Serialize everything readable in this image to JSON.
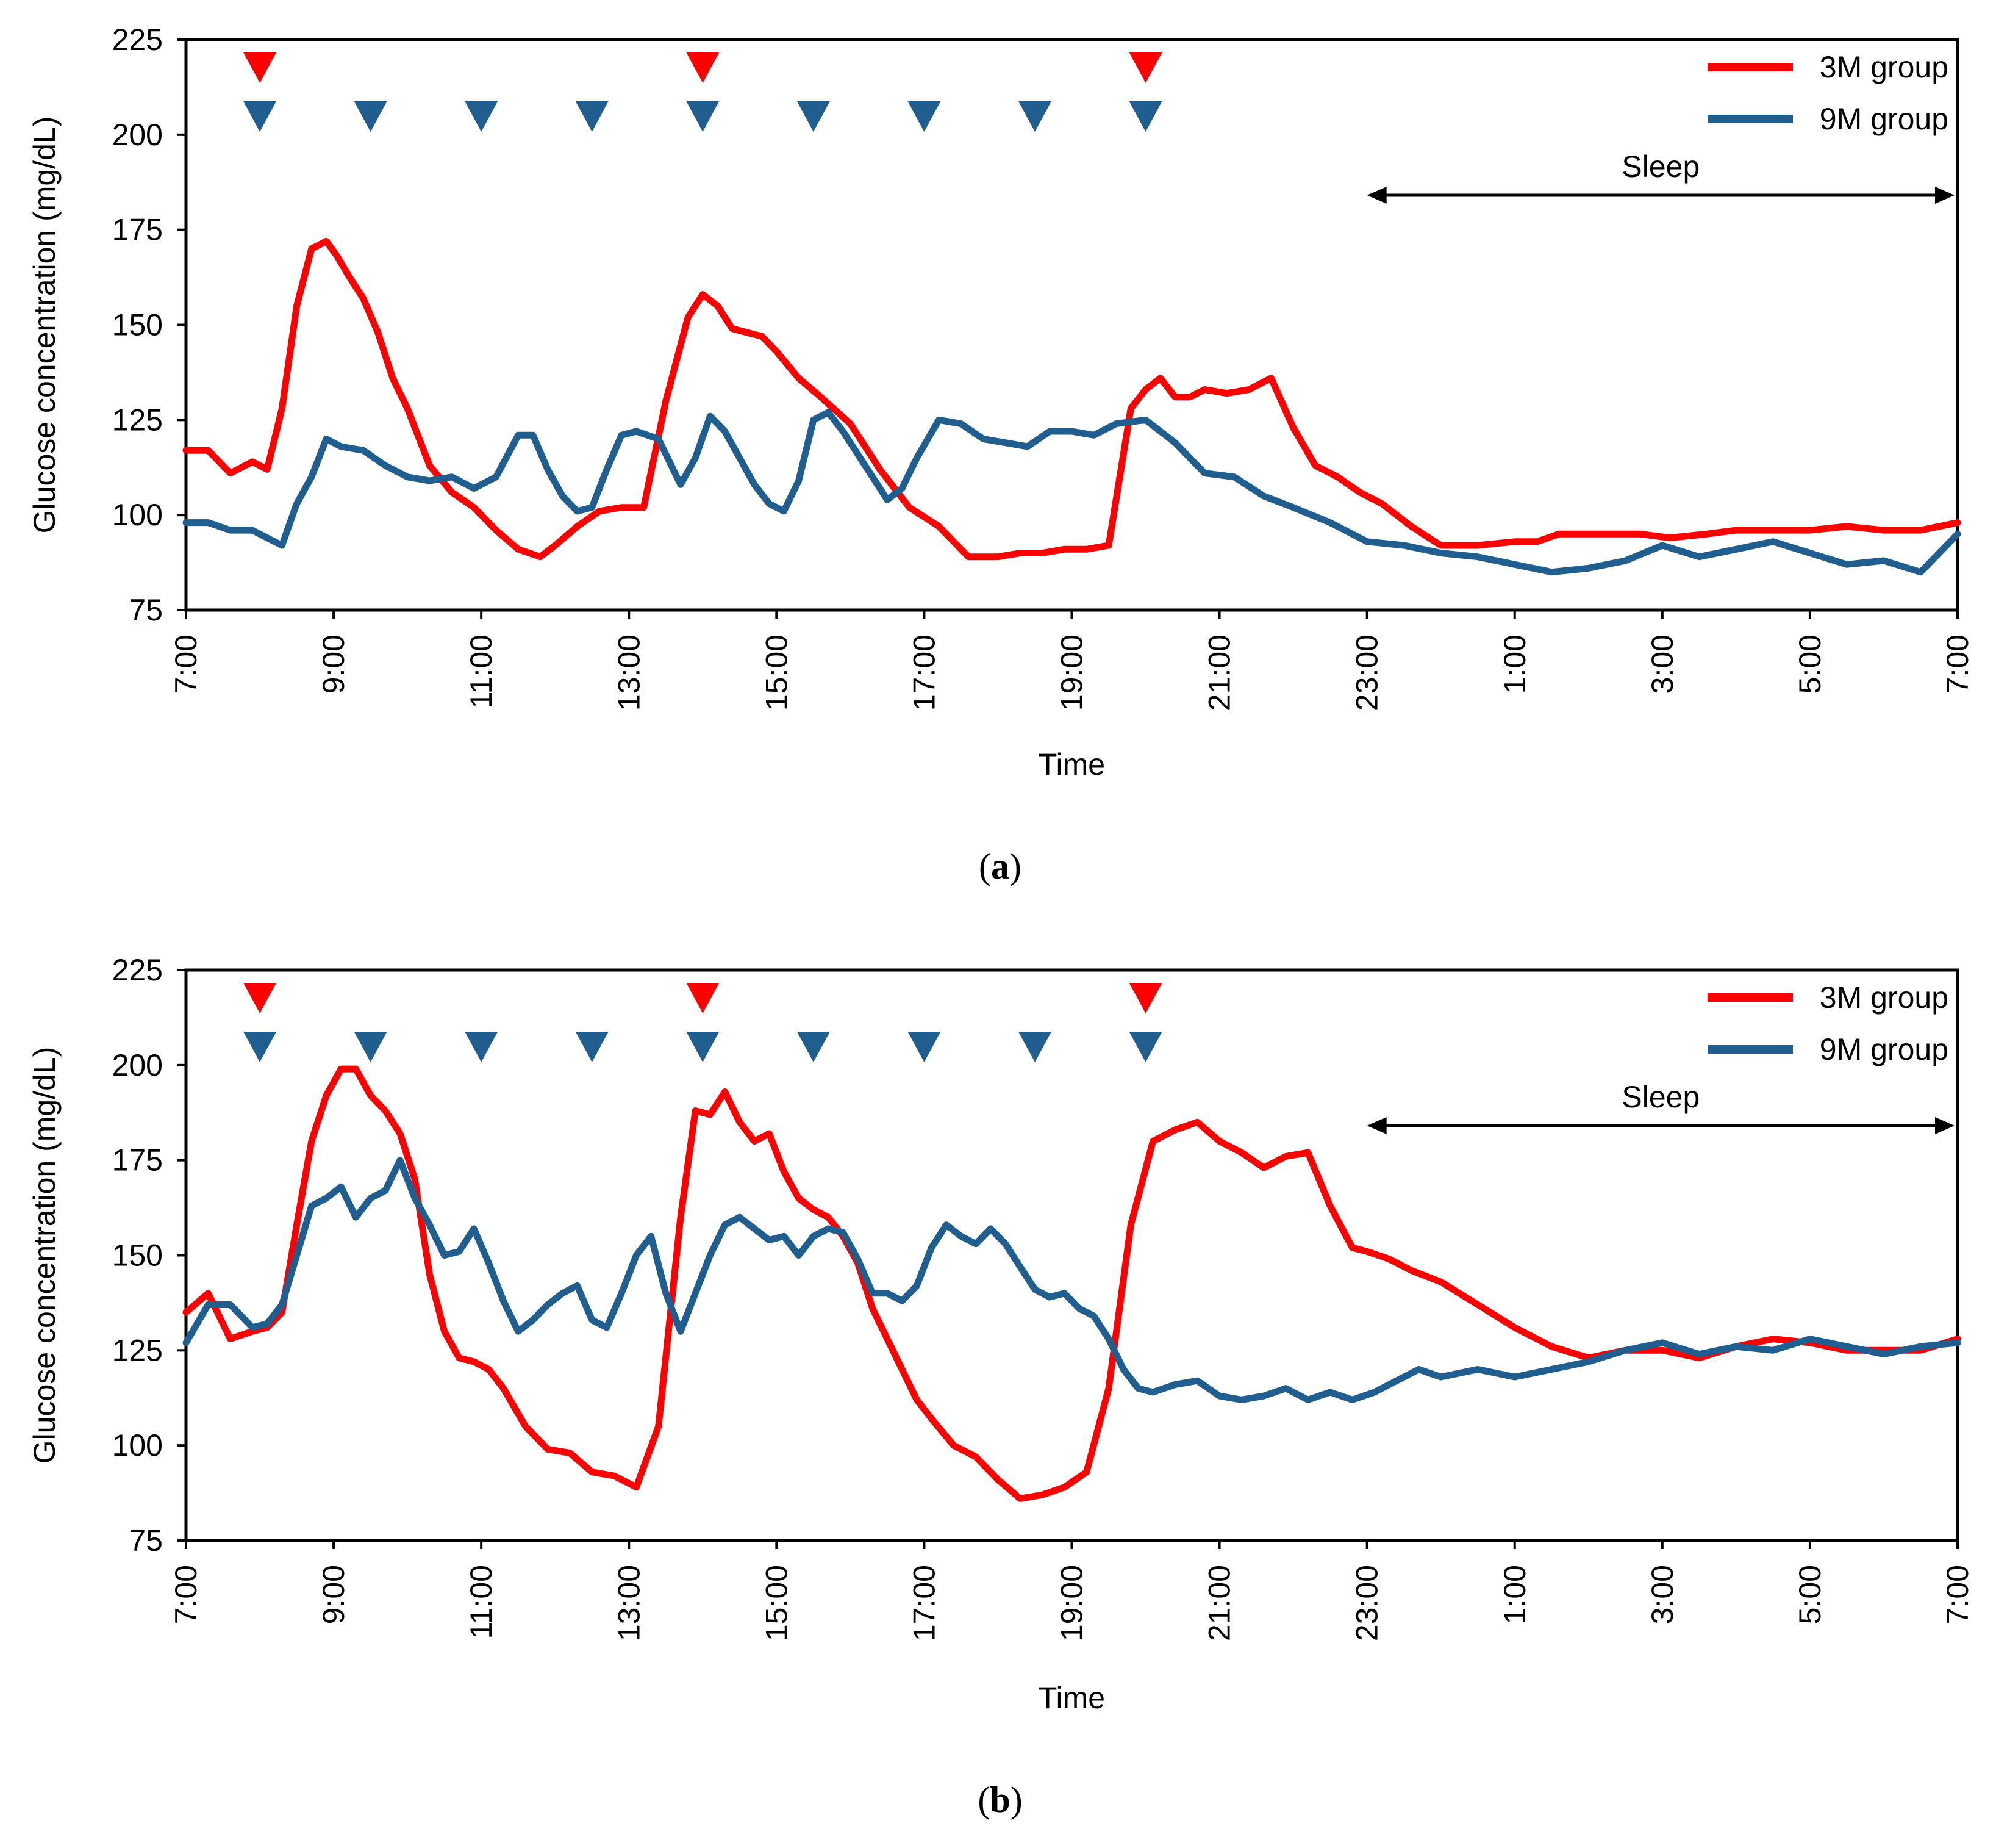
{
  "chart_data": [
    {
      "type": "line",
      "panel_label": "a",
      "xlabel": "Time",
      "ylabel": "Glucose concentration (mg/dL)",
      "ylim": [
        75,
        225
      ],
      "yticks": [
        75,
        100,
        125,
        150,
        175,
        200,
        225
      ],
      "xlim": [
        0,
        24
      ],
      "x_unit": "hours since 7:00",
      "xticks": [
        0,
        2,
        4,
        6,
        8,
        10,
        12,
        14,
        16,
        18,
        20,
        22,
        24
      ],
      "xtick_labels": [
        "7:00",
        "9:00",
        "11:00",
        "13:00",
        "15:00",
        "17:00",
        "19:00",
        "21:00",
        "23:00",
        "1:00",
        "3:00",
        "5:00",
        "7:00"
      ],
      "legend": {
        "placement": "top-right",
        "entries": [
          "3M group",
          "9M group"
        ]
      },
      "annotation": {
        "text": "Sleep",
        "x_start": 16,
        "x_end": 24
      },
      "markers": {
        "3M group": [
          1,
          7,
          13
        ],
        "9M group": [
          1,
          2.5,
          4,
          5.5,
          7,
          8.5,
          10,
          11.5,
          13
        ]
      },
      "series": [
        {
          "name": "3M group",
          "color": "#ff0000",
          "x": [
            0,
            0.3,
            0.6,
            0.9,
            1.1,
            1.3,
            1.5,
            1.7,
            1.9,
            2.05,
            2.2,
            2.4,
            2.6,
            2.8,
            3.0,
            3.3,
            3.6,
            3.9,
            4.2,
            4.5,
            4.8,
            5.0,
            5.3,
            5.6,
            5.9,
            6.2,
            6.5,
            6.8,
            7.0,
            7.2,
            7.4,
            7.6,
            7.8,
            8.0,
            8.3,
            8.6,
            9.0,
            9.4,
            9.8,
            10.2,
            10.6,
            11.0,
            11.3,
            11.6,
            11.9,
            12.2,
            12.5,
            12.8,
            13.0,
            13.2,
            13.4,
            13.6,
            13.8,
            14.1,
            14.4,
            14.7,
            15.0,
            15.3,
            15.6,
            15.9,
            16.2,
            16.6,
            17.0,
            17.5,
            18.0,
            18.3,
            18.6,
            18.9,
            19.3,
            19.7,
            20.1,
            20.6,
            21.0,
            21.5,
            22.0,
            22.5,
            23.0,
            23.5,
            24.0
          ],
          "values": [
            117,
            117,
            111,
            114,
            112,
            128,
            155,
            170,
            172,
            168,
            163,
            157,
            148,
            136,
            128,
            113,
            106,
            102,
            96,
            91,
            89,
            92,
            97,
            101,
            102,
            102,
            130,
            152,
            158,
            155,
            149,
            148,
            147,
            143,
            136,
            131,
            124,
            112,
            102,
            97,
            89,
            89,
            90,
            90,
            91,
            91,
            92,
            128,
            133,
            136,
            131,
            131,
            133,
            132,
            133,
            136,
            123,
            113,
            110,
            106,
            103,
            97,
            92,
            92,
            93,
            93,
            95,
            95,
            95,
            95,
            94,
            95,
            96,
            96,
            96,
            97,
            96,
            96,
            98
          ]
        },
        {
          "name": "9M group",
          "color": "#1f5e8e",
          "x": [
            0,
            0.3,
            0.6,
            0.9,
            1.1,
            1.3,
            1.5,
            1.7,
            1.9,
            2.1,
            2.4,
            2.7,
            3.0,
            3.3,
            3.6,
            3.9,
            4.2,
            4.5,
            4.7,
            4.9,
            5.1,
            5.3,
            5.5,
            5.7,
            5.9,
            6.1,
            6.4,
            6.7,
            6.9,
            7.1,
            7.3,
            7.5,
            7.7,
            7.9,
            8.1,
            8.3,
            8.5,
            8.7,
            8.9,
            9.1,
            9.3,
            9.5,
            9.7,
            9.9,
            10.2,
            10.5,
            10.8,
            11.1,
            11.4,
            11.7,
            12.0,
            12.3,
            12.6,
            13.0,
            13.4,
            13.8,
            14.2,
            14.6,
            15.0,
            15.5,
            16.0,
            16.5,
            17.0,
            17.5,
            18.0,
            18.5,
            19.0,
            19.5,
            20.0,
            20.5,
            21.0,
            21.5,
            22.0,
            22.5,
            23.0,
            23.5,
            24.0
          ],
          "values": [
            98,
            98,
            96,
            96,
            94,
            92,
            103,
            110,
            120,
            118,
            117,
            113,
            110,
            109,
            110,
            107,
            110,
            121,
            121,
            112,
            105,
            101,
            102,
            112,
            121,
            122,
            120,
            108,
            115,
            126,
            122,
            115,
            108,
            103,
            101,
            109,
            125,
            127,
            122,
            116,
            110,
            104,
            107,
            115,
            125,
            124,
            120,
            119,
            118,
            122,
            122,
            121,
            124,
            125,
            119,
            111,
            110,
            105,
            102,
            98,
            93,
            92,
            90,
            89,
            87,
            85,
            86,
            88,
            92,
            89,
            91,
            93,
            90,
            87,
            88,
            85,
            95
          ]
        }
      ]
    },
    {
      "type": "line",
      "panel_label": "b",
      "xlabel": "Time",
      "ylabel": "Glucose concentration (mg/dL)",
      "ylim": [
        75,
        225
      ],
      "yticks": [
        75,
        100,
        125,
        150,
        175,
        200,
        225
      ],
      "xlim": [
        0,
        24
      ],
      "x_unit": "hours since 7:00",
      "xticks": [
        0,
        2,
        4,
        6,
        8,
        10,
        12,
        14,
        16,
        18,
        20,
        22,
        24
      ],
      "xtick_labels": [
        "7:00",
        "9:00",
        "11:00",
        "13:00",
        "15:00",
        "17:00",
        "19:00",
        "21:00",
        "23:00",
        "1:00",
        "3:00",
        "5:00",
        "7:00"
      ],
      "legend": {
        "placement": "top-right",
        "entries": [
          "3M group",
          "9M group"
        ]
      },
      "annotation": {
        "text": "Sleep",
        "x_start": 16,
        "x_end": 24
      },
      "markers": {
        "3M group": [
          1,
          7,
          13
        ],
        "9M group": [
          1,
          2.5,
          4,
          5.5,
          7,
          8.5,
          10,
          11.5,
          13
        ]
      },
      "series": [
        {
          "name": "3M group",
          "color": "#ff0000",
          "x": [
            0,
            0.3,
            0.6,
            0.9,
            1.1,
            1.3,
            1.5,
            1.7,
            1.9,
            2.1,
            2.3,
            2.5,
            2.7,
            2.9,
            3.1,
            3.3,
            3.5,
            3.7,
            3.9,
            4.1,
            4.3,
            4.6,
            4.9,
            5.2,
            5.5,
            5.8,
            6.1,
            6.4,
            6.7,
            6.9,
            7.1,
            7.3,
            7.5,
            7.7,
            7.9,
            8.1,
            8.3,
            8.5,
            8.7,
            8.9,
            9.1,
            9.3,
            9.5,
            9.7,
            9.9,
            10.1,
            10.4,
            10.7,
            11.0,
            11.3,
            11.6,
            11.9,
            12.2,
            12.5,
            12.8,
            13.1,
            13.4,
            13.7,
            14.0,
            14.3,
            14.6,
            14.9,
            15.2,
            15.5,
            15.8,
            16.0,
            16.3,
            16.6,
            17.0,
            17.5,
            18.0,
            18.5,
            19.0,
            19.5,
            20.0,
            20.5,
            21.0,
            21.5,
            22.0,
            22.5,
            23.0,
            23.5,
            24.0
          ],
          "values": [
            135,
            140,
            128,
            130,
            131,
            135,
            158,
            180,
            192,
            199,
            199,
            192,
            188,
            182,
            170,
            145,
            130,
            123,
            122,
            120,
            115,
            105,
            99,
            98,
            93,
            92,
            89,
            105,
            160,
            188,
            187,
            193,
            185,
            180,
            182,
            172,
            165,
            162,
            160,
            155,
            148,
            136,
            128,
            120,
            112,
            107,
            100,
            97,
            91,
            86,
            87,
            89,
            93,
            115,
            158,
            180,
            183,
            185,
            180,
            177,
            173,
            176,
            177,
            163,
            152,
            151,
            149,
            146,
            143,
            137,
            131,
            126,
            123,
            125,
            125,
            123,
            126,
            128,
            127,
            125,
            125,
            125,
            128
          ]
        },
        {
          "name": "9M group",
          "color": "#1f5e8e",
          "x": [
            0,
            0.3,
            0.6,
            0.9,
            1.1,
            1.3,
            1.5,
            1.7,
            1.9,
            2.1,
            2.3,
            2.5,
            2.7,
            2.9,
            3.1,
            3.3,
            3.5,
            3.7,
            3.9,
            4.1,
            4.3,
            4.5,
            4.7,
            4.9,
            5.1,
            5.3,
            5.5,
            5.7,
            5.9,
            6.1,
            6.3,
            6.5,
            6.7,
            6.9,
            7.1,
            7.3,
            7.5,
            7.7,
            7.9,
            8.1,
            8.3,
            8.5,
            8.7,
            8.9,
            9.1,
            9.3,
            9.5,
            9.7,
            9.9,
            10.1,
            10.3,
            10.5,
            10.7,
            10.9,
            11.1,
            11.3,
            11.5,
            11.7,
            11.9,
            12.1,
            12.3,
            12.5,
            12.7,
            12.9,
            13.1,
            13.4,
            13.7,
            14.0,
            14.3,
            14.6,
            14.9,
            15.2,
            15.5,
            15.8,
            16.1,
            16.4,
            16.7,
            17.0,
            17.5,
            18.0,
            18.5,
            19.0,
            19.5,
            20.0,
            20.5,
            21.0,
            21.5,
            22.0,
            22.5,
            23.0,
            23.5,
            24.0
          ],
          "values": [
            127,
            137,
            137,
            131,
            132,
            137,
            150,
            163,
            165,
            168,
            160,
            165,
            167,
            175,
            165,
            158,
            150,
            151,
            157,
            148,
            138,
            130,
            133,
            137,
            140,
            142,
            133,
            131,
            140,
            150,
            155,
            140,
            130,
            140,
            150,
            158,
            160,
            157,
            154,
            155,
            150,
            155,
            157,
            156,
            149,
            140,
            140,
            138,
            142,
            152,
            158,
            155,
            153,
            157,
            153,
            147,
            141,
            139,
            140,
            136,
            134,
            128,
            120,
            115,
            114,
            116,
            117,
            113,
            112,
            113,
            115,
            112,
            114,
            112,
            114,
            117,
            120,
            118,
            120,
            118,
            120,
            122,
            125,
            127,
            124,
            126,
            125,
            128,
            126,
            124,
            126,
            127
          ]
        }
      ]
    }
  ]
}
